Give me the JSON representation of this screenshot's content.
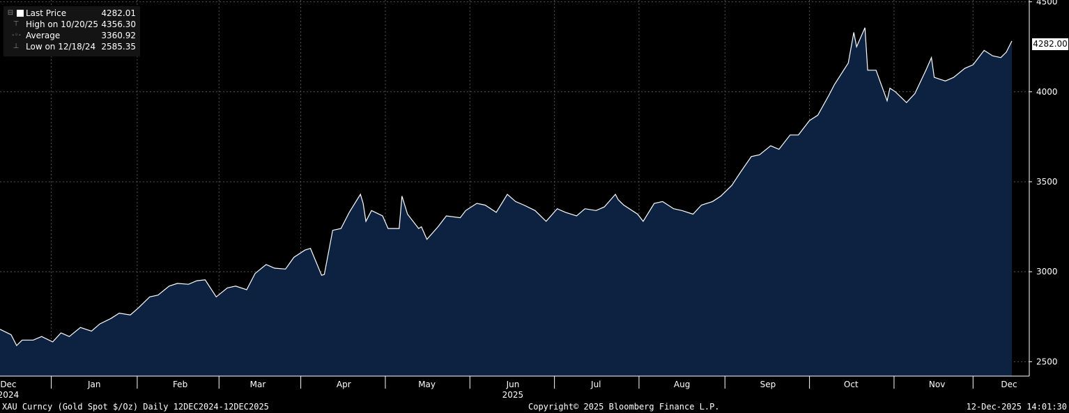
{
  "legend": {
    "last_price_label": "Last Price",
    "last_price_value": "4282.01",
    "high_label": "High on 10/20/25",
    "high_value": "4356.30",
    "average_label": "Average",
    "average_value": "3360.92",
    "low_label": "Low on 12/18/24",
    "low_value": "2585.35"
  },
  "last_badge": "4282.00",
  "footer": {
    "left": "XAU Curncy (Gold Spot  $/Oz) Daily 12DEC2024-12DEC2025",
    "center": "Copyright© 2025 Bloomberg Finance L.P.",
    "right": "12-Dec-2025 14:01:30"
  },
  "colors": {
    "background": "#000000",
    "area_fill": "#0d2240",
    "line": "#ffffff",
    "grid": "#555555"
  },
  "chart_data": {
    "type": "area",
    "title": "",
    "ylim": [
      2420,
      4510
    ],
    "yticks": [
      2500,
      3000,
      3500,
      4000,
      4500
    ],
    "grid": true,
    "legend_position": "top-left",
    "x_start": "2024-12-12",
    "x_end": "2025-12-12",
    "x_tick_labels": [
      {
        "date": "2024-12-15",
        "label": "Dec",
        "year": "2024"
      },
      {
        "date": "2025-01-15",
        "label": "Jan"
      },
      {
        "date": "2025-02-15",
        "label": "Feb"
      },
      {
        "date": "2025-03-15",
        "label": "Mar"
      },
      {
        "date": "2025-04-15",
        "label": "Apr"
      },
      {
        "date": "2025-05-15",
        "label": "May"
      },
      {
        "date": "2025-06-15",
        "label": "Jun",
        "year": "2025"
      },
      {
        "date": "2025-07-15",
        "label": "Jul"
      },
      {
        "date": "2025-08-15",
        "label": "Aug"
      },
      {
        "date": "2025-09-15",
        "label": "Sep"
      },
      {
        "date": "2025-10-15",
        "label": "Oct"
      },
      {
        "date": "2025-11-15",
        "label": "Nov"
      },
      {
        "date": "2025-12-11",
        "label": "Dec"
      }
    ],
    "series": [
      {
        "x": [
          "2024-12-12",
          "2024-12-16",
          "2024-12-18",
          "2024-12-20",
          "2024-12-24",
          "2024-12-27",
          "2024-12-31",
          "2025-01-03",
          "2025-01-06",
          "2025-01-10",
          "2025-01-14",
          "2025-01-17",
          "2025-01-21",
          "2025-01-24",
          "2025-01-28",
          "2025-01-31",
          "2025-02-04",
          "2025-02-07",
          "2025-02-11",
          "2025-02-14",
          "2025-02-18",
          "2025-02-21",
          "2025-02-24",
          "2025-02-28",
          "2025-03-04",
          "2025-03-07",
          "2025-03-11",
          "2025-03-14",
          "2025-03-18",
          "2025-03-21",
          "2025-03-25",
          "2025-03-28",
          "2025-04-01",
          "2025-04-03",
          "2025-04-07",
          "2025-04-08",
          "2025-04-11",
          "2025-04-14",
          "2025-04-17",
          "2025-04-21",
          "2025-04-22",
          "2025-04-23",
          "2025-04-25",
          "2025-04-29",
          "2025-05-01",
          "2025-05-05",
          "2025-05-06",
          "2025-05-08",
          "2025-05-12",
          "2025-05-13",
          "2025-05-15",
          "2025-05-19",
          "2025-05-22",
          "2025-05-27",
          "2025-05-29",
          "2025-06-02",
          "2025-06-05",
          "2025-06-09",
          "2025-06-13",
          "2025-06-16",
          "2025-06-19",
          "2025-06-23",
          "2025-06-27",
          "2025-07-01",
          "2025-07-04",
          "2025-07-08",
          "2025-07-11",
          "2025-07-15",
          "2025-07-18",
          "2025-07-22",
          "2025-07-23",
          "2025-07-25",
          "2025-07-30",
          "2025-08-01",
          "2025-08-05",
          "2025-08-08",
          "2025-08-12",
          "2025-08-15",
          "2025-08-19",
          "2025-08-22",
          "2025-08-26",
          "2025-08-29",
          "2025-09-02",
          "2025-09-05",
          "2025-09-09",
          "2025-09-12",
          "2025-09-16",
          "2025-09-19",
          "2025-09-23",
          "2025-09-26",
          "2025-09-30",
          "2025-10-03",
          "2025-10-07",
          "2025-10-09",
          "2025-10-14",
          "2025-10-16",
          "2025-10-17",
          "2025-10-20",
          "2025-10-21",
          "2025-10-24",
          "2025-10-28",
          "2025-10-29",
          "2025-10-31",
          "2025-11-04",
          "2025-11-07",
          "2025-11-11",
          "2025-11-13",
          "2025-11-14",
          "2025-11-18",
          "2025-11-21",
          "2025-11-25",
          "2025-11-28",
          "2025-12-02",
          "2025-12-05",
          "2025-12-08",
          "2025-12-10",
          "2025-12-12"
        ],
        "values": [
          2680,
          2650,
          2590,
          2620,
          2620,
          2640,
          2610,
          2660,
          2640,
          2690,
          2670,
          2710,
          2740,
          2770,
          2760,
          2800,
          2860,
          2870,
          2920,
          2935,
          2930,
          2950,
          2955,
          2860,
          2910,
          2920,
          2900,
          2990,
          3040,
          3020,
          3015,
          3080,
          3120,
          3130,
          2980,
          2985,
          3230,
          3240,
          3330,
          3430,
          3380,
          3280,
          3340,
          3310,
          3240,
          3240,
          3420,
          3320,
          3240,
          3250,
          3180,
          3250,
          3310,
          3300,
          3340,
          3380,
          3370,
          3330,
          3430,
          3390,
          3370,
          3340,
          3280,
          3350,
          3330,
          3310,
          3350,
          3340,
          3360,
          3430,
          3400,
          3370,
          3320,
          3280,
          3380,
          3390,
          3350,
          3340,
          3320,
          3370,
          3390,
          3420,
          3480,
          3550,
          3640,
          3650,
          3700,
          3680,
          3760,
          3760,
          3840,
          3870,
          3980,
          4040,
          4160,
          4330,
          4250,
          4356,
          4120,
          4120,
          3950,
          4020,
          4000,
          3940,
          3990,
          4120,
          4190,
          4080,
          4060,
          4080,
          4130,
          4150,
          4230,
          4200,
          4190,
          4220,
          4282
        ]
      }
    ]
  }
}
